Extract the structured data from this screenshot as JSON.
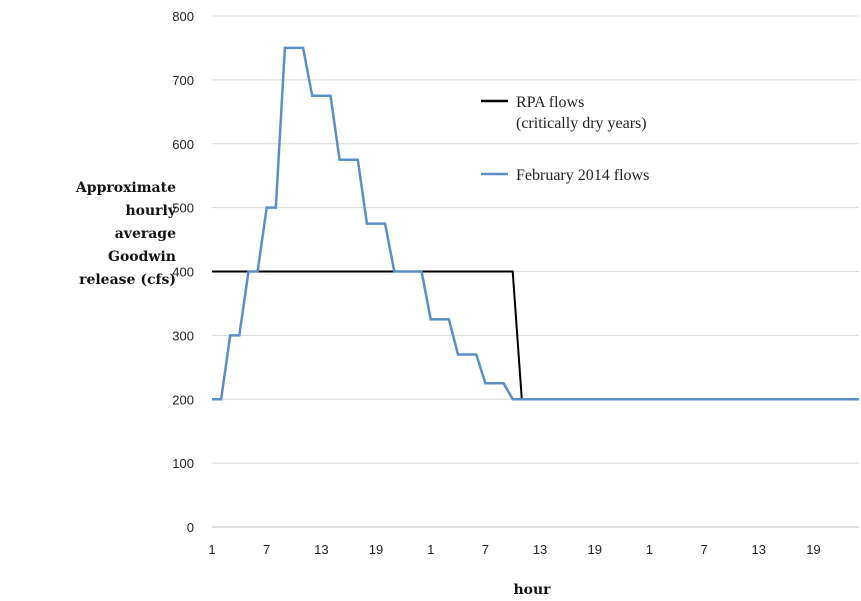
{
  "chart_data": {
    "type": "line",
    "title": "",
    "xlabel": "hour",
    "ylabel": [
      "Approximate",
      "hourly",
      "average",
      "Goodwin",
      "release (cfs)"
    ],
    "ylim": [
      0,
      800
    ],
    "yticks": [
      0,
      100,
      200,
      300,
      400,
      500,
      600,
      700,
      800
    ],
    "xlim": [
      1,
      72
    ],
    "x_ticks": [
      {
        "x": 1,
        "label": "1"
      },
      {
        "x": 7,
        "label": "7"
      },
      {
        "x": 13,
        "label": "13"
      },
      {
        "x": 19,
        "label": "19"
      },
      {
        "x": 25,
        "label": "1"
      },
      {
        "x": 31,
        "label": "7"
      },
      {
        "x": 37,
        "label": "13"
      },
      {
        "x": 43,
        "label": "19"
      },
      {
        "x": 49,
        "label": "1"
      },
      {
        "x": 55,
        "label": "7"
      },
      {
        "x": 61,
        "label": "13"
      },
      {
        "x": 67,
        "label": "19"
      }
    ],
    "grid": true,
    "legend_position": "top-right",
    "series": [
      {
        "name": "RPA flows\n(critically dry years)",
        "label_lines": [
          "RPA flows",
          "(critically dry years)"
        ],
        "color": "#000000",
        "points": [
          [
            1,
            400
          ],
          [
            34,
            400
          ],
          [
            35,
            200
          ],
          [
            72,
            200
          ]
        ]
      },
      {
        "name": "February 2014 flows",
        "label_lines": [
          "February 2014 flows"
        ],
        "color": "#5b8ec7",
        "points": [
          [
            1,
            200
          ],
          [
            2,
            200
          ],
          [
            3,
            300
          ],
          [
            4,
            300
          ],
          [
            5,
            400
          ],
          [
            6,
            400
          ],
          [
            7,
            500
          ],
          [
            8,
            500
          ],
          [
            9,
            750
          ],
          [
            10,
            750
          ],
          [
            11,
            750
          ],
          [
            12,
            675
          ],
          [
            13,
            675
          ],
          [
            14,
            675
          ],
          [
            15,
            575
          ],
          [
            16,
            575
          ],
          [
            17,
            575
          ],
          [
            18,
            475
          ],
          [
            19,
            475
          ],
          [
            20,
            475
          ],
          [
            21,
            400
          ],
          [
            22,
            400
          ],
          [
            23,
            400
          ],
          [
            24,
            400
          ],
          [
            25,
            325
          ],
          [
            26,
            325
          ],
          [
            27,
            325
          ],
          [
            28,
            270
          ],
          [
            29,
            270
          ],
          [
            30,
            270
          ],
          [
            31,
            225
          ],
          [
            32,
            225
          ],
          [
            33,
            225
          ],
          [
            34,
            200
          ],
          [
            72,
            200
          ]
        ]
      }
    ]
  }
}
